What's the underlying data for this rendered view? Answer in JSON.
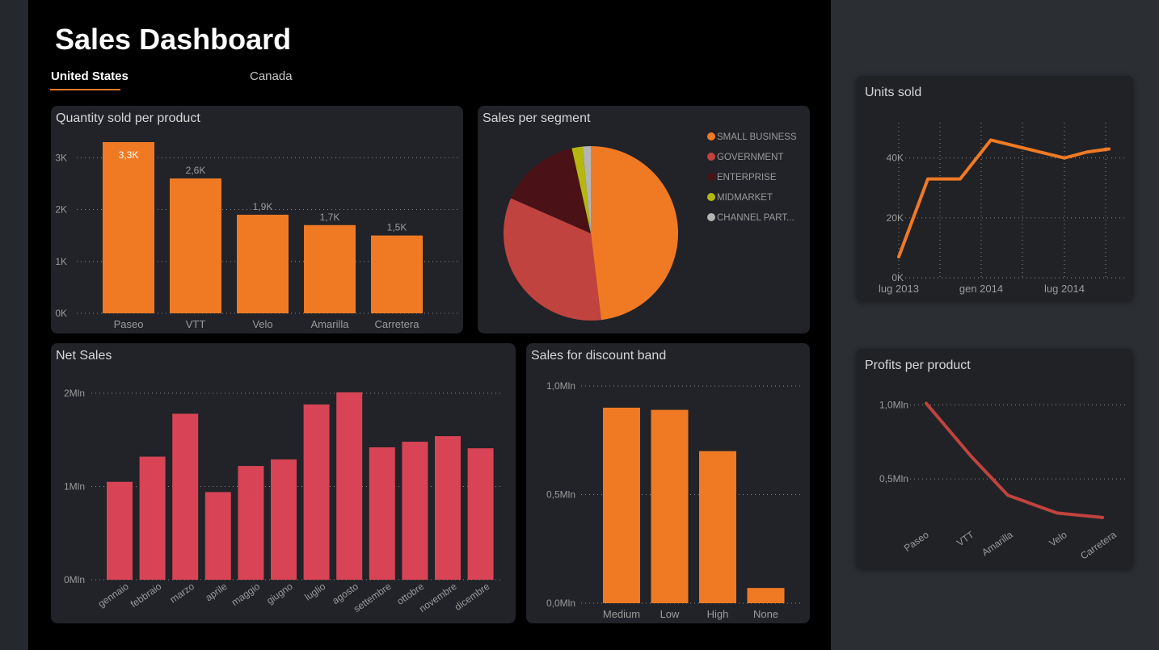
{
  "header": {
    "title": "Sales Dashboard"
  },
  "tabs": [
    {
      "label": "United States",
      "active": true
    },
    {
      "label": "Canada",
      "active": false
    }
  ],
  "colors": {
    "orange": "#f07a24",
    "red": "#d84455",
    "darkred": "#c0433f",
    "maroon": "#4a1216",
    "olive": "#b5b80f",
    "grey": "#b4b4b4",
    "background": "#000000",
    "card": "#212328"
  },
  "chart_data": [
    {
      "id": "quantity",
      "type": "bar",
      "title": "Quantity sold per product",
      "categories": [
        "Paseo",
        "VTT",
        "Velo",
        "Amarilla",
        "Carretera"
      ],
      "values": [
        3300,
        2600,
        1900,
        1700,
        1500
      ],
      "data_labels": [
        "3,3K",
        "2,6K",
        "1,9K",
        "1,7K",
        "1,5K"
      ],
      "yticks": [
        0,
        1000,
        2000,
        3000
      ],
      "ytick_labels": [
        "0K",
        "1K",
        "2K",
        "3K"
      ],
      "ylim": [
        0,
        3300
      ],
      "grid": true,
      "color": "#f07a24"
    },
    {
      "id": "segment",
      "type": "pie",
      "title": "Sales per segment",
      "categories": [
        "SMALL BUSINESS",
        "GOVERNMENT",
        "ENTERPRISE",
        "MIDMARKET",
        "CHANNEL PART..."
      ],
      "values": [
        48.1,
        33.5,
        14.9,
        2.0,
        1.5
      ],
      "colors": [
        "#f07a24",
        "#c0433f",
        "#4a1216",
        "#b5b80f",
        "#b4b4b4"
      ],
      "legend_position": "right"
    },
    {
      "id": "netsales",
      "type": "bar",
      "title": "Net Sales",
      "categories": [
        "gennaio",
        "febbraio",
        "marzo",
        "aprile",
        "maggio",
        "giugno",
        "luglio",
        "agosto",
        "settembre",
        "ottobre",
        "novembre",
        "dicembre"
      ],
      "values": [
        1050000,
        1320000,
        1780000,
        940000,
        1220000,
        1290000,
        1880000,
        2010000,
        1420000,
        1480000,
        1540000,
        1410000
      ],
      "yticks": [
        0,
        1000000,
        2000000
      ],
      "ytick_labels": [
        "0Mln",
        "1Mln",
        "2Mln"
      ],
      "ylim": [
        0,
        2000000
      ],
      "grid": true,
      "color": "#d84455"
    },
    {
      "id": "discount",
      "type": "bar",
      "title": "Sales for discount band",
      "categories": [
        "Medium",
        "Low",
        "High",
        "None"
      ],
      "values": [
        900000,
        890000,
        700000,
        70000
      ],
      "yticks": [
        0,
        500000,
        1000000
      ],
      "ytick_labels": [
        "0,0Mln",
        "0,5Mln",
        "1,0Mln"
      ],
      "ylim": [
        0,
        1000000
      ],
      "grid": true,
      "color": "#f07a24"
    },
    {
      "id": "units",
      "type": "line",
      "title": "Units sold",
      "x": [
        "2013-09",
        "2013-11",
        "2014-01",
        "2014-03",
        "2014-05",
        "2014-07",
        "2014-09"
      ],
      "values": [
        7000,
        33000,
        33000,
        46000,
        40000,
        42000,
        43000
      ],
      "xticks": [
        "lug 2013",
        "gen 2014",
        "lug 2014"
      ],
      "yticks": [
        0,
        20000,
        40000
      ],
      "ytick_labels": [
        "0K",
        "20K",
        "40K"
      ],
      "ylim": [
        0,
        48000
      ],
      "grid": true,
      "color": "#f07a24"
    },
    {
      "id": "profits",
      "type": "line",
      "title": "Profits per product",
      "categories": [
        "Paseo",
        "VTT",
        "Amarilla",
        "Velo",
        "Carretera"
      ],
      "values": [
        1010000,
        650000,
        390000,
        270000,
        240000
      ],
      "yticks": [
        500000,
        1000000
      ],
      "ytick_labels": [
        "0,5Mln",
        "1,0Mln"
      ],
      "ylim": [
        0,
        1100000
      ],
      "grid": true,
      "color": "#c0433f"
    }
  ]
}
